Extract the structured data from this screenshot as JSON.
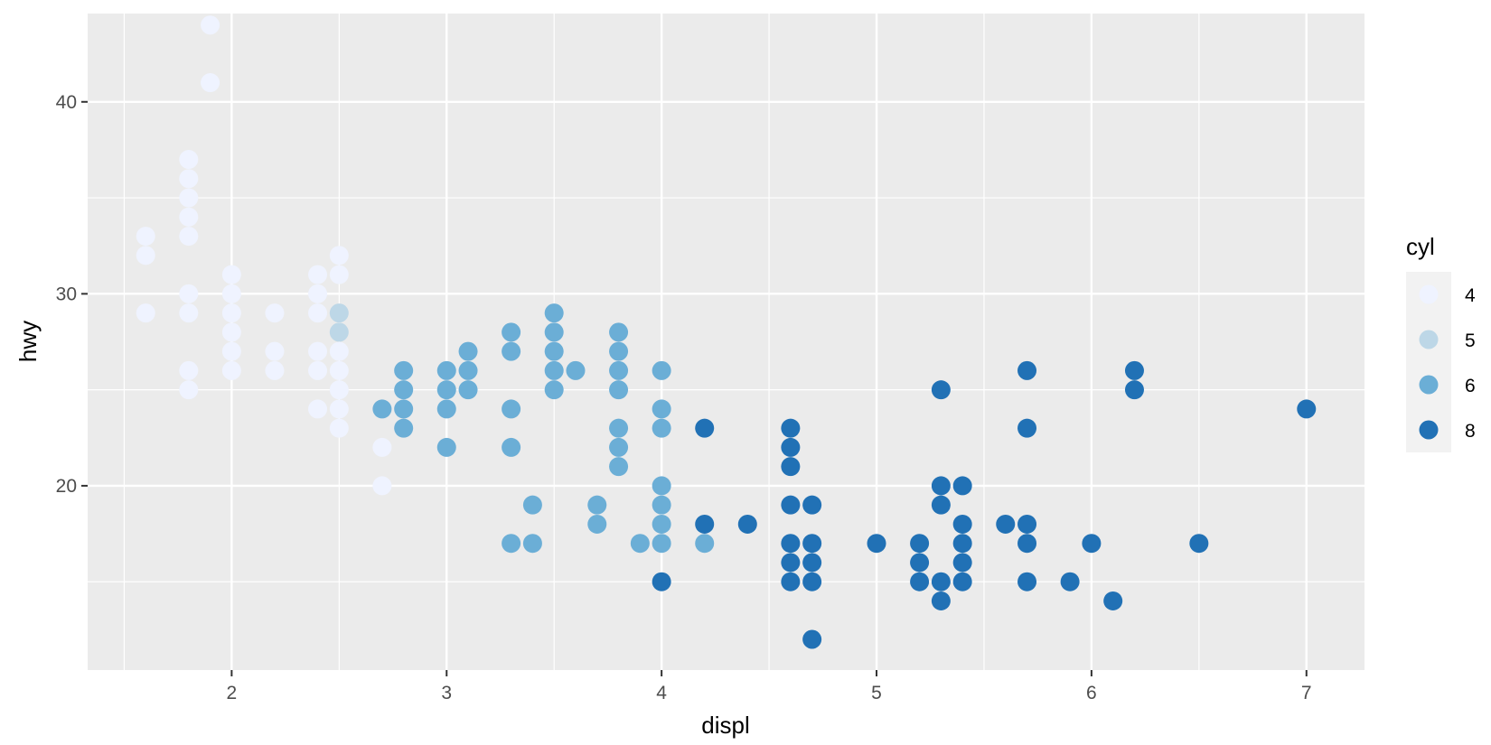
{
  "chart_data": {
    "type": "scatter",
    "title": "",
    "xlabel": "displ",
    "ylabel": "hwy",
    "xlim": [
      1.33,
      7.27
    ],
    "ylim": [
      10.4,
      44.6
    ],
    "x_ticks": [
      2,
      3,
      4,
      5,
      6,
      7
    ],
    "y_ticks": [
      20,
      30,
      40
    ],
    "grid": true,
    "legend": {
      "title": "cyl",
      "position": "right",
      "entries": [
        {
          "label": "4",
          "color": "#eff3ff"
        },
        {
          "label": "5",
          "color": "#bdd7e7"
        },
        {
          "label": "6",
          "color": "#6baed6"
        },
        {
          "label": "8",
          "color": "#2171b5"
        }
      ]
    },
    "colors": {
      "4": "#eff3ff",
      "5": "#bdd7e7",
      "6": "#6baed6",
      "8": "#2171b5"
    },
    "panel_background": "#ebebeb",
    "series": [
      {
        "name": "4",
        "points": [
          [
            1.6,
            33
          ],
          [
            1.6,
            32
          ],
          [
            1.6,
            29
          ],
          [
            1.8,
            37
          ],
          [
            1.8,
            36
          ],
          [
            1.8,
            35
          ],
          [
            1.8,
            34
          ],
          [
            1.8,
            33
          ],
          [
            1.8,
            30
          ],
          [
            1.8,
            29
          ],
          [
            1.8,
            26
          ],
          [
            1.8,
            25
          ],
          [
            1.9,
            44
          ],
          [
            1.9,
            41
          ],
          [
            2.0,
            31
          ],
          [
            2.0,
            30
          ],
          [
            2.0,
            29
          ],
          [
            2.0,
            28
          ],
          [
            2.0,
            27
          ],
          [
            2.0,
            26
          ],
          [
            2.2,
            29
          ],
          [
            2.2,
            27
          ],
          [
            2.2,
            26
          ],
          [
            2.4,
            31
          ],
          [
            2.4,
            30
          ],
          [
            2.4,
            29
          ],
          [
            2.4,
            27
          ],
          [
            2.4,
            26
          ],
          [
            2.4,
            24
          ],
          [
            2.5,
            32
          ],
          [
            2.5,
            31
          ],
          [
            2.5,
            27
          ],
          [
            2.5,
            26
          ],
          [
            2.5,
            25
          ],
          [
            2.5,
            24
          ],
          [
            2.5,
            23
          ],
          [
            2.7,
            22
          ],
          [
            2.7,
            20
          ]
        ]
      },
      {
        "name": "5",
        "points": [
          [
            2.5,
            29
          ],
          [
            2.5,
            28
          ]
        ]
      },
      {
        "name": "6",
        "points": [
          [
            2.7,
            24
          ],
          [
            2.8,
            26
          ],
          [
            2.8,
            25
          ],
          [
            2.8,
            24
          ],
          [
            2.8,
            23
          ],
          [
            3.0,
            26
          ],
          [
            3.0,
            25
          ],
          [
            3.0,
            24
          ],
          [
            3.0,
            22
          ],
          [
            3.1,
            27
          ],
          [
            3.1,
            26
          ],
          [
            3.1,
            25
          ],
          [
            3.3,
            28
          ],
          [
            3.3,
            27
          ],
          [
            3.3,
            24
          ],
          [
            3.3,
            22
          ],
          [
            3.3,
            17
          ],
          [
            3.4,
            19
          ],
          [
            3.4,
            17
          ],
          [
            3.5,
            29
          ],
          [
            3.5,
            28
          ],
          [
            3.5,
            27
          ],
          [
            3.5,
            26
          ],
          [
            3.5,
            25
          ],
          [
            3.6,
            26
          ],
          [
            3.7,
            19
          ],
          [
            3.7,
            18
          ],
          [
            3.8,
            28
          ],
          [
            3.8,
            27
          ],
          [
            3.8,
            26
          ],
          [
            3.8,
            25
          ],
          [
            3.8,
            23
          ],
          [
            3.8,
            22
          ],
          [
            3.8,
            21
          ],
          [
            3.9,
            17
          ],
          [
            4.0,
            26
          ],
          [
            4.0,
            24
          ],
          [
            4.0,
            23
          ],
          [
            4.0,
            20
          ],
          [
            4.0,
            19
          ],
          [
            4.0,
            18
          ],
          [
            4.0,
            17
          ],
          [
            4.2,
            17
          ]
        ]
      },
      {
        "name": "8",
        "points": [
          [
            4.0,
            15
          ],
          [
            4.2,
            23
          ],
          [
            4.2,
            18
          ],
          [
            4.4,
            18
          ],
          [
            4.6,
            23
          ],
          [
            4.6,
            22
          ],
          [
            4.6,
            21
          ],
          [
            4.6,
            19
          ],
          [
            4.6,
            17
          ],
          [
            4.6,
            16
          ],
          [
            4.6,
            15
          ],
          [
            4.7,
            19
          ],
          [
            4.7,
            17
          ],
          [
            4.7,
            16
          ],
          [
            4.7,
            15
          ],
          [
            4.7,
            12
          ],
          [
            5.0,
            17
          ],
          [
            5.2,
            17
          ],
          [
            5.2,
            16
          ],
          [
            5.2,
            15
          ],
          [
            5.3,
            25
          ],
          [
            5.3,
            20
          ],
          [
            5.3,
            19
          ],
          [
            5.3,
            15
          ],
          [
            5.3,
            14
          ],
          [
            5.4,
            20
          ],
          [
            5.4,
            18
          ],
          [
            5.4,
            17
          ],
          [
            5.4,
            16
          ],
          [
            5.4,
            15
          ],
          [
            5.6,
            18
          ],
          [
            5.7,
            26
          ],
          [
            5.7,
            23
          ],
          [
            5.7,
            18
          ],
          [
            5.7,
            17
          ],
          [
            5.7,
            15
          ],
          [
            5.9,
            15
          ],
          [
            6.0,
            17
          ],
          [
            6.1,
            14
          ],
          [
            6.2,
            26
          ],
          [
            6.2,
            25
          ],
          [
            6.5,
            17
          ],
          [
            7.0,
            24
          ]
        ]
      }
    ]
  }
}
